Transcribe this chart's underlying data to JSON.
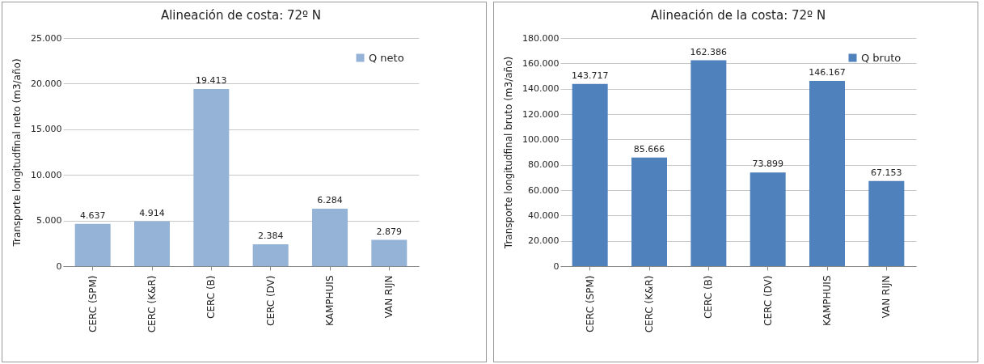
{
  "chart_data": [
    {
      "type": "bar",
      "title": "Alineación de costa: 72º N",
      "ylabel": "Transporte longitudfinal neto (m3/año)",
      "categories": [
        "CERC (SPM)",
        "CERC (K&R)",
        "CERC (B)",
        "CERC (DV)",
        "KAMPHUIS",
        "VAN RIJN"
      ],
      "series": [
        {
          "name": "Q neto",
          "color": "#95b3d7",
          "values": [
            4637,
            4914,
            19413,
            2384,
            6284,
            2879
          ],
          "value_labels": [
            "4.637",
            "4.914",
            "19.413",
            "2.384",
            "6.284",
            "2.879"
          ]
        }
      ],
      "ylim": [
        0,
        25000
      ],
      "yticks": [
        {
          "value": 0,
          "label": "0"
        },
        {
          "value": 5000,
          "label": "5.000"
        },
        {
          "value": 10000,
          "label": "10.000"
        },
        {
          "value": 15000,
          "label": "15.000"
        },
        {
          "value": 20000,
          "label": "20.000"
        },
        {
          "value": 25000,
          "label": "25.000"
        }
      ],
      "grid": "y",
      "legend": "top right"
    },
    {
      "type": "bar",
      "title": "Alineación de la costa: 72º N",
      "ylabel": "Transporte longitudfinal bruto (m3/año)",
      "categories": [
        "CERC (SPM)",
        "CERC (K&R)",
        "CERC (B)",
        "CERC (DV)",
        "KAMPHUIS",
        "VAN RIJN"
      ],
      "series": [
        {
          "name": "Q bruto",
          "color": "#4f81bd",
          "values": [
            143717,
            85666,
            162386,
            73899,
            146167,
            67153
          ],
          "value_labels": [
            "143.717",
            "85.666",
            "162.386",
            "73.899",
            "146.167",
            "67.153"
          ]
        }
      ],
      "ylim": [
        0,
        180000
      ],
      "yticks": [
        {
          "value": 0,
          "label": "0"
        },
        {
          "value": 20000,
          "label": "20.000"
        },
        {
          "value": 40000,
          "label": "40.000"
        },
        {
          "value": 60000,
          "label": "60.000"
        },
        {
          "value": 80000,
          "label": "80.000"
        },
        {
          "value": 100000,
          "label": "100.000"
        },
        {
          "value": 120000,
          "label": "120.000"
        },
        {
          "value": 140000,
          "label": "140.000"
        },
        {
          "value": 160000,
          "label": "160.000"
        },
        {
          "value": 180000,
          "label": "180.000"
        }
      ],
      "grid": "y",
      "legend": "top right"
    }
  ]
}
